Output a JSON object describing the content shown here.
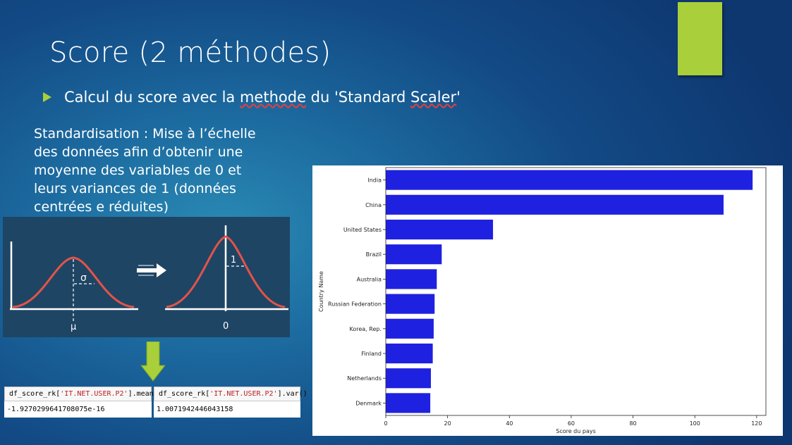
{
  "slide": {
    "title": "Score (2 méthodes)",
    "bullet": {
      "text_before": "Calcul du score avec la ",
      "underlined_1": "methode",
      "text_middle": " du 'Standard ",
      "underlined_2": "Scaler",
      "text_after": "'"
    },
    "paragraph_lines": [
      "Standardisation : Mise à l’échelle",
      "des données afin d’obtenir une",
      "moyenne des variables de 0 et",
      "leurs variances de 1 (données",
      "centrées e réduites)"
    ]
  },
  "colors": {
    "accent": "#a9d03a",
    "bar": "#1f21e0",
    "curve": "#e4534a",
    "panel": "#1f4564"
  },
  "diagram": {
    "left_sigma": "σ",
    "left_mu": "μ",
    "right_one": "1",
    "right_zero": "0"
  },
  "code_cells": [
    {
      "prefix": "df_score_rk[",
      "key": "'IT.NET.USER.P2'",
      "suffix": "].mean()",
      "output": "-1.9270299641708075e-16"
    },
    {
      "prefix": "df_score_rk[",
      "key": "'IT.NET.USER.P2'",
      "suffix": "].var()",
      "output": "1.0071942446043158"
    }
  ],
  "chart_data": {
    "type": "bar",
    "orientation": "horizontal",
    "categories": [
      "India",
      "China",
      "United States",
      "Brazil",
      "Australia",
      "Russian Federation",
      "Korea, Rep.",
      "Finland",
      "Netherlands",
      "Denmark"
    ],
    "values": [
      118.7,
      109.3,
      34.7,
      18.1,
      16.5,
      15.8,
      15.5,
      15.2,
      14.6,
      14.4
    ],
    "xlabel": "Score du pays",
    "ylabel": "Country Name",
    "xlim": [
      0,
      123
    ],
    "xticks": [
      "0",
      "20",
      "40",
      "60",
      "80",
      "100",
      "120"
    ],
    "grid": false
  }
}
